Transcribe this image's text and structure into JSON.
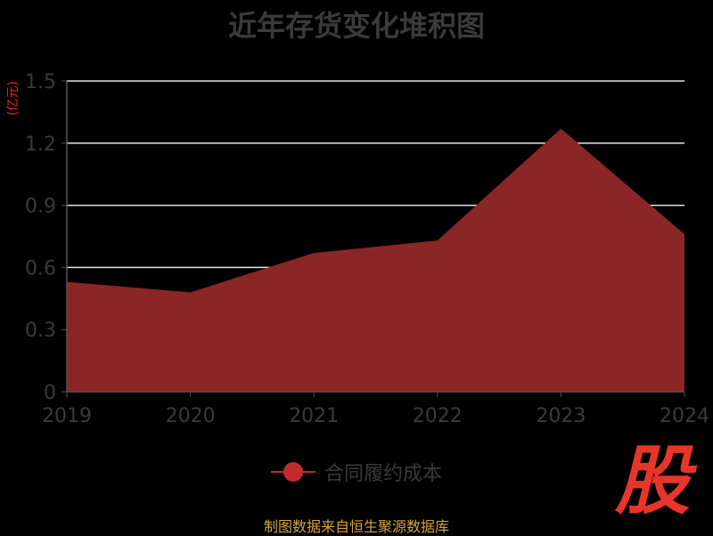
{
  "title": "近年存货变化堆积图",
  "unit_label": "(亿元)",
  "legend": {
    "label": "合同履约成本"
  },
  "source_text": "制图数据来自恒生聚源数据库",
  "logo_text": "股",
  "colors": {
    "background": "#000000",
    "series_fill": "#8b2626",
    "series_marker": "#c42a2a",
    "title": "#3a3a3a",
    "unit": "#ff1a1a",
    "source": "#d4a53b",
    "logo": "#e8352a"
  },
  "chart_data": {
    "type": "area",
    "categories": [
      "2019",
      "2020",
      "2021",
      "2022",
      "2023",
      "2024"
    ],
    "series": [
      {
        "name": "合同履约成本",
        "values": [
          0.53,
          0.48,
          0.67,
          0.73,
          1.27,
          0.76
        ]
      }
    ],
    "title": "近年存货变化堆积图",
    "ylabel": "(亿元)",
    "ylim": [
      0,
      1.5
    ],
    "yticks": [
      "0",
      "0.3",
      "0.6",
      "0.9",
      "1.2",
      "1.5"
    ],
    "grid": true,
    "legend_position": "bottom"
  }
}
